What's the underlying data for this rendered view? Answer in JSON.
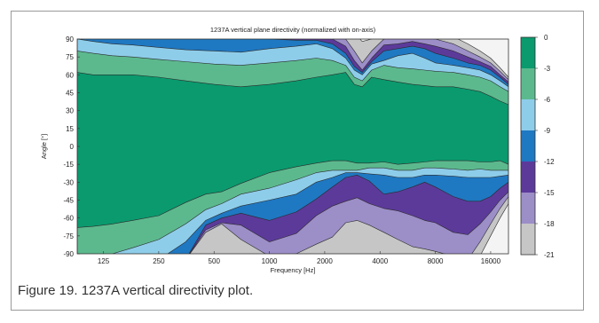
{
  "caption": "Figure 19. 1237A vertical directivity plot.",
  "chart_data": {
    "type": "heatmap",
    "subtype": "filled-contour",
    "title": "1237A vertical plane directivity (normalized with on-axis)",
    "xlabel": "Frequency [Hz]",
    "ylabel": "Angle [°]",
    "x_scale": "log",
    "xlim": [
      90,
      20000
    ],
    "ylim": [
      -90,
      90
    ],
    "x_ticks": [
      "125",
      "250",
      "500",
      "1000",
      "2000",
      "4000",
      "8000",
      "16000"
    ],
    "x_tick_values": [
      125,
      250,
      500,
      1000,
      2000,
      4000,
      8000,
      16000
    ],
    "y_ticks": [
      "90",
      "75",
      "60",
      "45",
      "30",
      "15",
      "0",
      "-15",
      "-30",
      "-45",
      "-60",
      "-75",
      "-90"
    ],
    "y_tick_values": [
      90,
      75,
      60,
      45,
      30,
      15,
      0,
      -15,
      -30,
      -45,
      -60,
      -75,
      -90
    ],
    "colorbar": {
      "ticks": [
        "0",
        "-3",
        "-6",
        "-9",
        "-12",
        "-15",
        "-18",
        "-21"
      ],
      "tick_values": [
        0,
        -3,
        -6,
        -9,
        -12,
        -15,
        -18,
        -21
      ],
      "levels": [
        {
          "range": [
            -3,
            0
          ],
          "color": "#0a9a6e"
        },
        {
          "range": [
            -6,
            -3
          ],
          "color": "#5cb98e"
        },
        {
          "range": [
            -9,
            -6
          ],
          "color": "#8ecdea"
        },
        {
          "range": [
            -12,
            -9
          ],
          "color": "#1f78c2"
        },
        {
          "range": [
            -15,
            -12
          ],
          "color": "#5c3a9a"
        },
        {
          "range": [
            -18,
            -15
          ],
          "color": "#9c8ec7"
        },
        {
          "range": [
            -21,
            -18
          ],
          "color": "#c6c6c6"
        },
        {
          "range": [
            -99,
            -21
          ],
          "color": "#f4f4f4"
        }
      ]
    },
    "upper_boundaries": {
      "frequencies": [
        90,
        110,
        140,
        180,
        250,
        350,
        500,
        700,
        1000,
        1400,
        1800,
        2200,
        2600,
        2900,
        3200,
        3600,
        4200,
        5000,
        6000,
        7000,
        8000,
        10000,
        12000,
        14000,
        16000,
        18000,
        20000
      ],
      "-3": [
        62,
        60,
        60,
        60,
        58,
        55,
        52,
        50,
        52,
        55,
        58,
        60,
        62,
        52,
        50,
        58,
        56,
        54,
        52,
        51,
        50,
        50,
        48,
        46,
        42,
        38,
        35
      ],
      "-6": [
        80,
        78,
        76,
        75,
        73,
        71,
        69,
        68,
        70,
        72,
        74,
        72,
        68,
        58,
        55,
        64,
        68,
        66,
        65,
        64,
        63,
        62,
        60,
        58,
        55,
        50,
        46
      ],
      "-9": [
        90,
        88,
        86,
        85,
        83,
        81,
        80,
        79,
        82,
        84,
        86,
        82,
        74,
        64,
        60,
        69,
        72,
        76,
        78,
        74,
        70,
        68,
        66,
        64,
        60,
        55,
        50
      ],
      "-12": [
        95,
        95,
        95,
        95,
        95,
        95,
        95,
        92,
        90,
        89,
        89,
        86,
        78,
        67,
        62,
        71,
        80,
        82,
        84,
        82,
        78,
        74,
        70,
        68,
        64,
        58,
        52
      ],
      "-15": [
        95,
        95,
        95,
        95,
        95,
        95,
        95,
        95,
        95,
        95,
        95,
        90,
        84,
        72,
        64,
        74,
        85,
        86,
        88,
        86,
        84,
        80,
        75,
        71,
        67,
        60,
        54
      ],
      "-18": [
        95,
        95,
        95,
        95,
        95,
        95,
        95,
        95,
        95,
        95,
        95,
        95,
        90,
        80,
        70,
        80,
        90,
        92,
        92,
        91,
        90,
        86,
        80,
        75,
        70,
        63,
        56
      ],
      "-21": [
        95,
        95,
        95,
        95,
        95,
        95,
        95,
        95,
        95,
        95,
        95,
        95,
        95,
        95,
        88,
        90,
        95,
        95,
        95,
        95,
        95,
        92,
        86,
        80,
        74,
        66,
        58
      ]
    },
    "lower_boundaries": {
      "frequencies": [
        90,
        110,
        140,
        180,
        250,
        350,
        450,
        550,
        700,
        1000,
        1400,
        1800,
        2200,
        2600,
        3000,
        3500,
        4200,
        5000,
        6000,
        7000,
        8000,
        10000,
        12000,
        14000,
        16000,
        18000,
        20000
      ],
      "-3": [
        -68,
        -67,
        -65,
        -62,
        -58,
        -47,
        -40,
        -38,
        -31,
        -22,
        -17,
        -14,
        -12,
        -12,
        -14,
        -14,
        -13,
        -15,
        -14,
        -13,
        -12,
        -12,
        -12,
        -13,
        -13,
        -12,
        -15
      ],
      "-6": [
        -95,
        -93,
        -90,
        -85,
        -78,
        -65,
        -53,
        -48,
        -40,
        -35,
        -28,
        -22,
        -20,
        -20,
        -20,
        -18,
        -18,
        -20,
        -20,
        -18,
        -18,
        -19,
        -20,
        -19,
        -20,
        -20,
        -20
      ],
      "-9": [
        -95,
        -95,
        -95,
        -95,
        -95,
        -80,
        -62,
        -56,
        -50,
        -45,
        -40,
        -30,
        -26,
        -22,
        -22,
        -23,
        -24,
        -26,
        -26,
        -24,
        -24,
        -25,
        -26,
        -26,
        -26,
        -25,
        -24
      ],
      "-12": [
        -95,
        -95,
        -95,
        -95,
        -95,
        -95,
        -66,
        -60,
        -56,
        -62,
        -55,
        -44,
        -34,
        -26,
        -24,
        -29,
        -40,
        -38,
        -34,
        -30,
        -34,
        -42,
        -46,
        -46,
        -42,
        -35,
        -30
      ],
      "-15": [
        -95,
        -95,
        -95,
        -95,
        -95,
        -95,
        -70,
        -64,
        -66,
        -80,
        -73,
        -58,
        -50,
        -46,
        -43,
        -48,
        -52,
        -54,
        -58,
        -62,
        -64,
        -72,
        -74,
        -65,
        -55,
        -45,
        -38
      ],
      "-18": [
        -95,
        -95,
        -95,
        -95,
        -95,
        -95,
        -72,
        -65,
        -78,
        -92,
        -90,
        -82,
        -76,
        -64,
        -62,
        -66,
        -72,
        -78,
        -84,
        -86,
        -88,
        -92,
        -95,
        -80,
        -65,
        -52,
        -42
      ],
      "-21": [
        -95,
        -95,
        -95,
        -95,
        -95,
        -95,
        -95,
        -95,
        -95,
        -95,
        -95,
        -95,
        -95,
        -95,
        -95,
        -95,
        -95,
        -95,
        -95,
        -95,
        -95,
        -95,
        -95,
        -92,
        -75,
        -60,
        -48
      ]
    }
  }
}
